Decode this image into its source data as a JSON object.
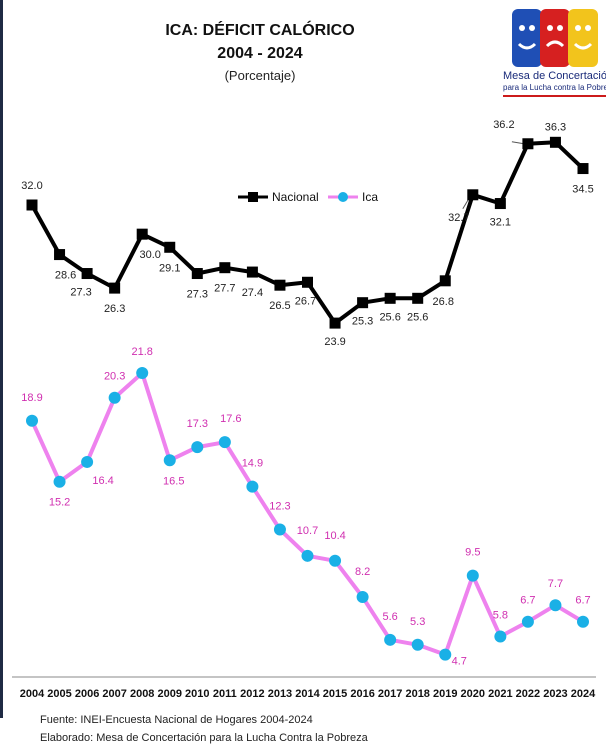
{
  "header": {
    "title_line1": "ICA: DÉFICIT CALÓRICO",
    "title_line2": "2004 - 2024",
    "subtitle": "(Porcentaje)"
  },
  "logo": {
    "name_line1": "Mesa de Concertación",
    "name_line2": "para la Lucha contra la Pobreza",
    "colors": [
      "#1f4fb5",
      "#d62020",
      "#f2c41c"
    ]
  },
  "footer": {
    "source": "Fuente: INEI-Encuesta Nacional de Hogares 2004-2024",
    "credit": "Elaborado: Mesa de Concertación para la Lucha Contra la Pobreza"
  },
  "chart_data": {
    "type": "line",
    "title": "ICA: DÉFICIT CALÓRICO 2004 - 2024",
    "subtitle": "(Porcentaje)",
    "x": [
      "2004",
      "2005",
      "2006",
      "2007",
      "2008",
      "2009",
      "2010",
      "2011",
      "2012",
      "2013",
      "2014",
      "2015",
      "2016",
      "2017",
      "2018",
      "2019",
      "2020",
      "2021",
      "2022",
      "2023",
      "2024"
    ],
    "series": [
      {
        "name": "Nacional",
        "color": "#000000",
        "marker": "square",
        "values": [
          32.0,
          28.6,
          27.3,
          26.3,
          30.0,
          29.1,
          27.3,
          27.7,
          27.4,
          26.5,
          26.7,
          23.9,
          25.3,
          25.6,
          25.6,
          26.8,
          32.7,
          32.1,
          36.2,
          36.3,
          34.5
        ],
        "labels": [
          "32.0",
          "28.6",
          "27.3",
          "26.3",
          "30.0",
          "29.1",
          "27.3",
          "27.7",
          "27.4",
          "26.5",
          "26.7",
          "23.9",
          "25.3",
          "25.6",
          "25.6",
          "26.8",
          "32.7",
          "32.1",
          "36.2",
          "36.3",
          "34.5"
        ]
      },
      {
        "name": "Ica",
        "color": "#ee82ee",
        "marker_color": "#1ab0e6",
        "label_color": "#d02fb0",
        "marker": "circle",
        "values": [
          18.9,
          15.2,
          16.4,
          20.3,
          21.8,
          16.5,
          17.3,
          17.6,
          14.9,
          12.3,
          10.7,
          10.4,
          8.2,
          5.6,
          5.3,
          4.7,
          9.5,
          5.8,
          6.7,
          7.7,
          6.7
        ],
        "labels": [
          "18.9",
          "15.2",
          "16.4",
          "20.3",
          "21.8",
          "16.5",
          "17.3",
          "17.6",
          "14.9",
          "12.3",
          "10.7",
          "10.4",
          "8.2",
          "5.6",
          "5.3",
          "4.7",
          "9.5",
          "5.8",
          "6.7",
          "7.7",
          "6.7"
        ]
      }
    ],
    "legend": {
      "position": "top-center"
    },
    "grid": false
  }
}
